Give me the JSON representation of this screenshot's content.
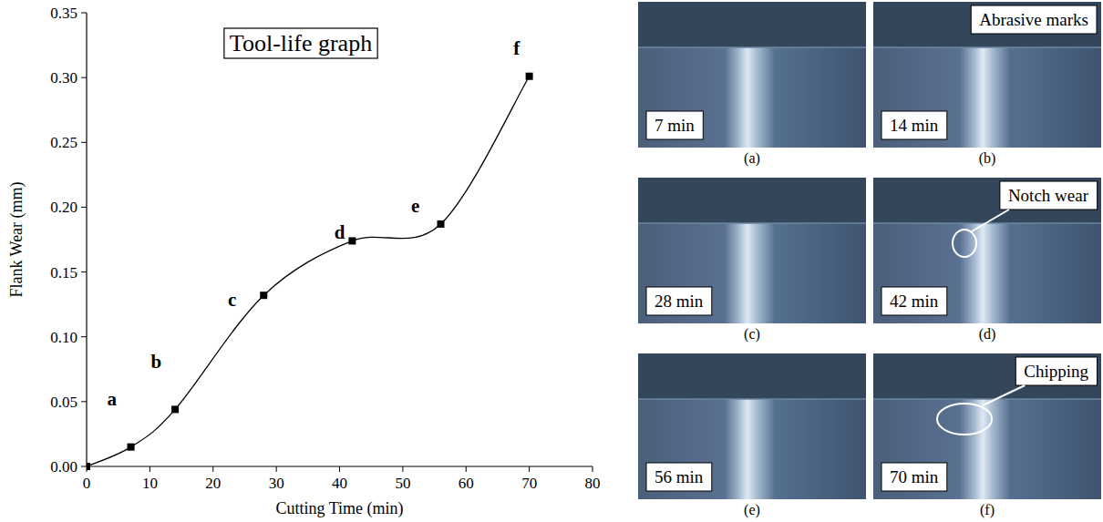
{
  "chart_data": {
    "type": "line",
    "title": "Tool-life graph",
    "x_label": "Cutting Time (min)",
    "y_label": "Flank Wear (mm)",
    "x": [
      0,
      7,
      14,
      28,
      42,
      56,
      70
    ],
    "series": [
      {
        "name": "Flank Wear",
        "color": "#000000",
        "marker": "square",
        "line_style": "smooth",
        "values": [
          0,
          0.015,
          0.044,
          0.132,
          0.174,
          0.187,
          0.301
        ]
      }
    ],
    "xlim": [
      0,
      80
    ],
    "xticks": [
      0,
      10,
      20,
      30,
      40,
      50,
      60,
      70,
      80
    ],
    "ylim": [
      0,
      0.35
    ],
    "yticks": [
      {
        "value": 0,
        "label": "0.00"
      },
      {
        "value": 0.05,
        "label": "0.05"
      },
      {
        "value": 0.1,
        "label": "0.10"
      },
      {
        "value": 0.15,
        "label": "0.15"
      },
      {
        "value": 0.2,
        "label": "0.20"
      },
      {
        "value": 0.25,
        "label": "0.25"
      },
      {
        "value": 0.3,
        "label": "0.30"
      },
      {
        "value": 0.35,
        "label": "0.35"
      }
    ],
    "grid": false,
    "annotations": [
      {
        "text": "a",
        "x": 4,
        "y": 0.047
      },
      {
        "text": "b",
        "x": 11,
        "y": 0.076
      },
      {
        "text": "c",
        "x": 23,
        "y": 0.124
      },
      {
        "text": "d",
        "x": 40,
        "y": 0.176
      },
      {
        "text": "e",
        "x": 52,
        "y": 0.196
      },
      {
        "text": "f",
        "x": 68,
        "y": 0.318
      }
    ]
  },
  "panels": [
    {
      "time": "7 min",
      "caption": "(a)"
    },
    {
      "time": "14 min",
      "caption": "(b)",
      "note": "Abrasive marks"
    },
    {
      "time": "28 min",
      "caption": "(c)"
    },
    {
      "time": "42 min",
      "caption": "(d)",
      "note": "Notch wear"
    },
    {
      "time": "56 min",
      "caption": "(e)"
    },
    {
      "time": "70 min",
      "caption": "(f)",
      "note": "Chipping"
    }
  ]
}
